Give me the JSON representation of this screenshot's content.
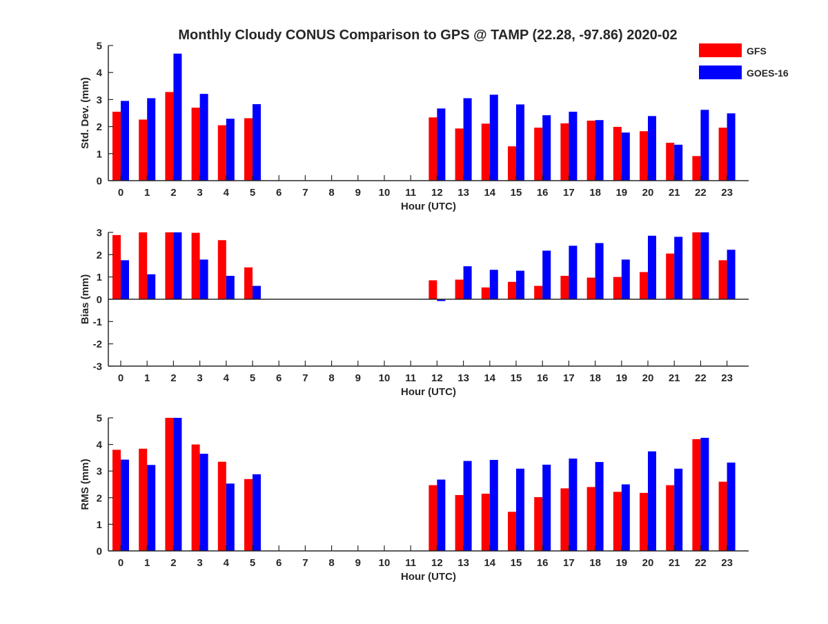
{
  "title": "Monthly Cloudy CONUS Comparison to GPS @ TAMP (22.28, -97.86) 2020-02",
  "legend": [
    {
      "name": "GFS",
      "color": "#ff0000"
    },
    {
      "name": "GOES-16",
      "color": "#0000ff"
    }
  ],
  "chart_data": [
    {
      "type": "bar",
      "title": "Monthly Cloudy CONUS Comparison to GPS @ TAMP (22.28, -97.86) 2020-02",
      "xlabel": "Hour (UTC)",
      "ylabel": "Std. Dev. (mm)",
      "ylim": [
        0,
        5
      ],
      "yticks": [
        0,
        1,
        2,
        3,
        4,
        5
      ],
      "categories": [
        "0",
        "1",
        "2",
        "3",
        "4",
        "5",
        "6",
        "7",
        "8",
        "9",
        "10",
        "11",
        "12",
        "13",
        "14",
        "15",
        "16",
        "17",
        "18",
        "19",
        "20",
        "21",
        "22",
        "23"
      ],
      "legend_position": "top-right",
      "series": [
        {
          "name": "GFS",
          "color": "#ff0000",
          "values": [
            2.55,
            2.26,
            3.28,
            2.7,
            2.05,
            2.31,
            null,
            null,
            null,
            null,
            null,
            null,
            2.34,
            1.93,
            2.11,
            1.27,
            1.96,
            2.12,
            2.22,
            1.99,
            1.83,
            1.4,
            0.91,
            1.96
          ]
        },
        {
          "name": "GOES-16",
          "color": "#0000ff",
          "values": [
            2.95,
            3.05,
            4.7,
            3.21,
            2.29,
            2.83,
            null,
            null,
            null,
            null,
            null,
            null,
            2.67,
            3.05,
            3.18,
            2.82,
            2.42,
            2.55,
            2.24,
            1.78,
            2.39,
            1.33,
            2.62,
            2.49
          ]
        }
      ]
    },
    {
      "type": "bar",
      "xlabel": "Hour (UTC)",
      "ylabel": "Bias (mm)",
      "ylim": [
        -3,
        3
      ],
      "yticks": [
        -3,
        -2,
        -1,
        0,
        1,
        2,
        3
      ],
      "categories": [
        "0",
        "1",
        "2",
        "3",
        "4",
        "5",
        "6",
        "7",
        "8",
        "9",
        "10",
        "11",
        "12",
        "13",
        "14",
        "15",
        "16",
        "17",
        "18",
        "19",
        "20",
        "21",
        "22",
        "23"
      ],
      "series": [
        {
          "name": "GFS",
          "color": "#ff0000",
          "values": [
            2.88,
            3.0,
            3.0,
            2.98,
            2.65,
            1.43,
            null,
            null,
            null,
            null,
            null,
            null,
            0.85,
            0.88,
            0.53,
            0.78,
            0.6,
            1.05,
            0.97,
            1.0,
            1.22,
            2.05,
            3.0,
            1.75
          ]
        },
        {
          "name": "GOES-16",
          "color": "#0000ff",
          "values": [
            1.75,
            1.12,
            3.0,
            1.78,
            1.05,
            0.6,
            null,
            null,
            null,
            null,
            null,
            null,
            -0.08,
            1.48,
            1.32,
            1.28,
            2.18,
            2.4,
            2.52,
            1.78,
            2.85,
            2.8,
            3.0,
            2.22
          ]
        }
      ]
    },
    {
      "type": "bar",
      "xlabel": "Hour (UTC)",
      "ylabel": "RMS (mm)",
      "ylim": [
        0,
        5
      ],
      "yticks": [
        0,
        1,
        2,
        3,
        4,
        5
      ],
      "categories": [
        "0",
        "1",
        "2",
        "3",
        "4",
        "5",
        "6",
        "7",
        "8",
        "9",
        "10",
        "11",
        "12",
        "13",
        "14",
        "15",
        "16",
        "17",
        "18",
        "19",
        "20",
        "21",
        "22",
        "23"
      ],
      "series": [
        {
          "name": "GFS",
          "color": "#ff0000",
          "values": [
            3.8,
            3.84,
            5.0,
            4.0,
            3.35,
            2.7,
            null,
            null,
            null,
            null,
            null,
            null,
            2.47,
            2.1,
            2.15,
            1.47,
            2.02,
            2.35,
            2.4,
            2.22,
            2.18,
            2.47,
            4.2,
            2.6
          ]
        },
        {
          "name": "GOES-16",
          "color": "#0000ff",
          "values": [
            3.43,
            3.23,
            5.0,
            3.65,
            2.53,
            2.88,
            null,
            null,
            null,
            null,
            null,
            null,
            2.68,
            3.38,
            3.42,
            3.09,
            3.24,
            3.47,
            3.34,
            2.5,
            3.74,
            3.09,
            4.25,
            3.32
          ]
        }
      ]
    }
  ]
}
